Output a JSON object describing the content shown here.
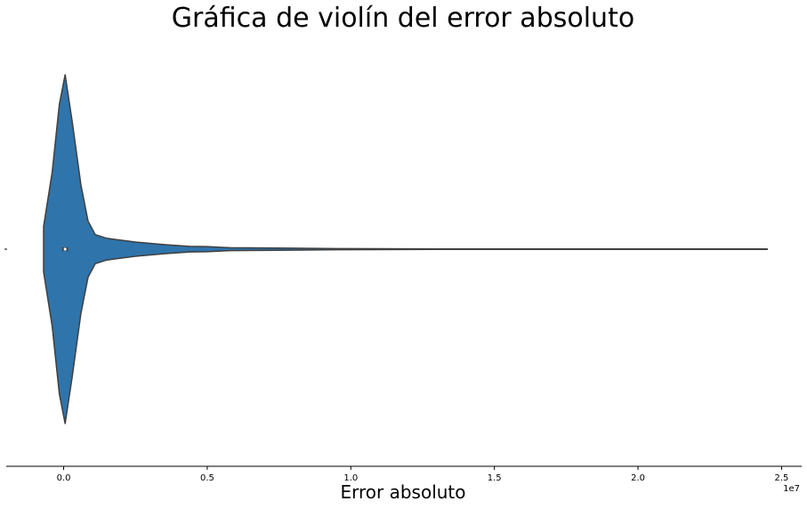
{
  "chart_data": {
    "type": "violin",
    "title": "Gráfica de violín del error absoluto",
    "xlabel": "Error absoluto",
    "ylabel": "",
    "x_ticks": [
      "0.0",
      "0.5",
      "1.0",
      "1.5",
      "2.0",
      "2.5"
    ],
    "x_tick_values": [
      0,
      5000000,
      10000000,
      15000000,
      20000000,
      25000000
    ],
    "x_offset_label": "1e7",
    "xlim": [
      -2000000,
      25700000
    ],
    "y_ticks": [
      ""
    ],
    "grid": false,
    "colors": {
      "fill": "#2f74aa",
      "outline": "#3f3f3f",
      "axis": "#000000"
    },
    "violin": {
      "min": -700000,
      "max": 24500000,
      "density": [
        {
          "x": -700000,
          "w": 0.13
        },
        {
          "x": -400000,
          "w": 0.44
        },
        {
          "x": -150000,
          "w": 0.83
        },
        {
          "x": 50000,
          "w": 1.0
        },
        {
          "x": 300000,
          "w": 0.73
        },
        {
          "x": 600000,
          "w": 0.37
        },
        {
          "x": 850000,
          "w": 0.16
        },
        {
          "x": 1100000,
          "w": 0.083
        },
        {
          "x": 1500000,
          "w": 0.062
        },
        {
          "x": 2500000,
          "w": 0.041
        },
        {
          "x": 3500000,
          "w": 0.026
        },
        {
          "x": 4400000,
          "w": 0.016
        },
        {
          "x": 5000000,
          "w": 0.015
        },
        {
          "x": 5800000,
          "w": 0.008
        },
        {
          "x": 7500000,
          "w": 0.006
        },
        {
          "x": 9500000,
          "w": 0.003
        },
        {
          "x": 11000000,
          "w": 0.0025
        },
        {
          "x": 13000000,
          "w": 0.0015
        },
        {
          "x": 20000000,
          "w": 0.001
        },
        {
          "x": 24500000,
          "w": 0.0008
        }
      ],
      "box": {
        "q1": -50000,
        "median": 50000,
        "q3": 150000
      }
    }
  }
}
